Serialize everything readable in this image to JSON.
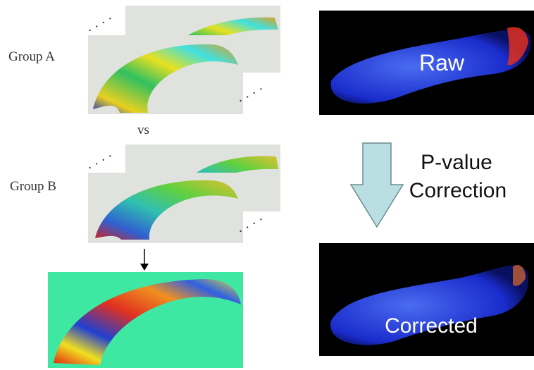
{
  "group_a": "Group A",
  "vs": "vs",
  "group_b": "Group B",
  "raw": "Raw",
  "correction": {
    "line1": "P-value",
    "line2": "Correction"
  },
  "corrected": "Corrected"
}
